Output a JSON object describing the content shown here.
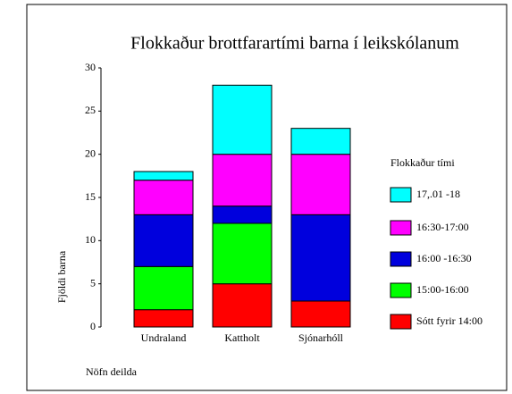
{
  "chart_data": {
    "type": "stacked_bar",
    "title": "Flokkaður brottfarartími barna í leikskólanum",
    "y_label": "Fjöldi barna",
    "x_label": "Nöfn deilda",
    "legend_title": "Flokkaður tími",
    "categories": [
      "Undraland",
      "Kattholt",
      "Sjónarhóll"
    ],
    "series": [
      {
        "name": "Sótt fyrir 14:00",
        "color": "#ff0000",
        "values": [
          2,
          5,
          3
        ]
      },
      {
        "name": "15:00-16:00",
        "color": "#00ff00",
        "values": [
          5,
          7,
          0
        ]
      },
      {
        "name": "16:00 -16:30",
        "color": "#0000dd",
        "values": [
          6,
          2,
          10
        ]
      },
      {
        "name": "16:30-17:00",
        "color": "#ff00ff",
        "values": [
          4,
          6,
          7
        ]
      },
      {
        "name": "17,.01 -18",
        "color": "#00ffff",
        "values": [
          1,
          8,
          3
        ]
      }
    ],
    "ylim": [
      0,
      30
    ],
    "yticks": [
      0,
      5,
      10,
      15,
      20,
      25,
      30
    ],
    "grid": false,
    "legend": "right"
  }
}
